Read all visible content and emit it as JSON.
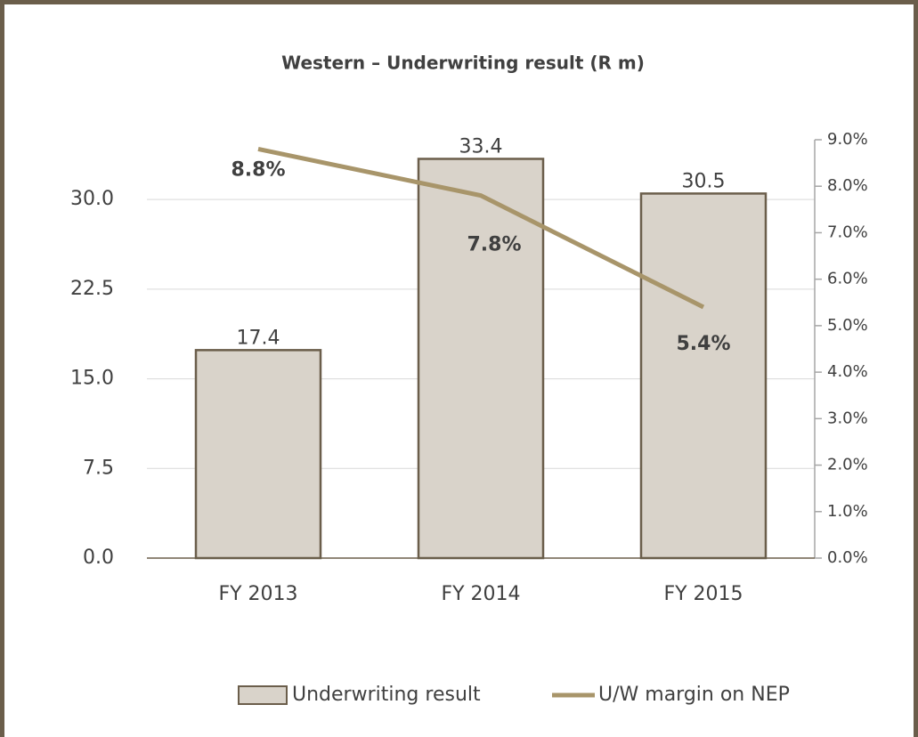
{
  "chart_data": {
    "type": "bar",
    "title": "Western – Underwriting result (R m)",
    "categories": [
      "FY 2013",
      "FY 2014",
      "FY 2015"
    ],
    "series": [
      {
        "name": "Underwriting result",
        "type": "bar",
        "color": "#d9d3ca",
        "values": [
          17.4,
          33.4,
          30.5
        ]
      },
      {
        "name": "U/W margin on NEP",
        "type": "line",
        "axis": "y2",
        "color": "#a8956a",
        "values": [
          8.8,
          7.8,
          5.4
        ],
        "value_labels": [
          "8.8%",
          "7.8%",
          "5.4%"
        ]
      }
    ],
    "ylim": [
      0,
      35
    ],
    "yticks": [
      {
        "value": 0,
        "label": "0.0"
      },
      7.5,
      {
        "value": 15,
        "label": "15.0"
      },
      22.5,
      {
        "value": 30,
        "label": "30.0"
      }
    ],
    "y2lim": [
      0,
      9
    ],
    "y2ticks": [
      {
        "value": 0,
        "label": "0.0%"
      },
      {
        "value": 1,
        "label": "1.0%"
      },
      {
        "value": 2,
        "label": "2.0%"
      },
      {
        "value": 3,
        "label": "3.0%"
      },
      {
        "value": 4,
        "label": "4.0%"
      },
      {
        "value": 5,
        "label": "5.0%"
      },
      {
        "value": 6,
        "label": "6.0%"
      },
      {
        "value": 7,
        "label": "7.0%"
      },
      {
        "value": 8,
        "label": "8.0%"
      },
      {
        "value": 9,
        "label": "9.0%"
      }
    ],
    "grid": true,
    "legend": "bottom"
  }
}
